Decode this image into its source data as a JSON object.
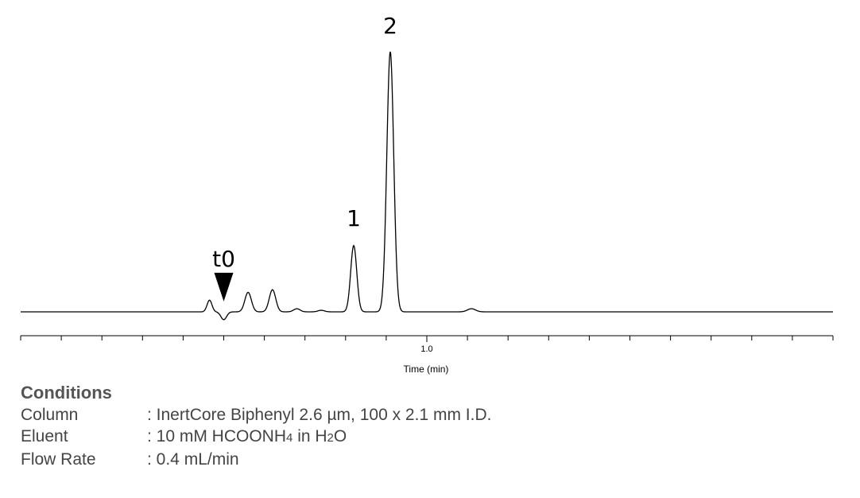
{
  "chart_data": {
    "type": "line",
    "title": "",
    "xlabel": "Time (min)",
    "ylabel": "",
    "x_ticks_labeled": [
      {
        "value": 1.0,
        "label": "1.0"
      }
    ],
    "x_minor_step": 0.1,
    "xlim": [
      0.0,
      2.0
    ],
    "ylim": [
      -0.05,
      1.05
    ],
    "grid": false,
    "baseline": 0.0,
    "series": [
      {
        "color": "#000000",
        "peaks": [
          {
            "t": 0.465,
            "h": 0.045,
            "w": 0.006
          },
          {
            "t": 0.5,
            "h": -0.03,
            "w": 0.007
          },
          {
            "t": 0.56,
            "h": 0.075,
            "w": 0.008
          },
          {
            "t": 0.62,
            "h": 0.085,
            "w": 0.008
          },
          {
            "t": 0.68,
            "h": 0.012,
            "w": 0.008
          },
          {
            "t": 0.74,
            "h": 0.006,
            "w": 0.008
          },
          {
            "t": 0.82,
            "h": 0.255,
            "w": 0.0075
          },
          {
            "t": 0.91,
            "h": 1.0,
            "w": 0.0085
          },
          {
            "t": 1.11,
            "h": 0.012,
            "w": 0.01
          }
        ]
      }
    ],
    "annotations": [
      {
        "label": "t0",
        "x": 0.5,
        "y": 0.04,
        "marker": "triangle-down"
      },
      {
        "label": "1",
        "x": 0.82,
        "y": 0.33
      },
      {
        "label": "2",
        "x": 0.91,
        "y": 1.07
      }
    ]
  },
  "conditions": {
    "title": "Conditions",
    "rows": [
      {
        "label": "Column",
        "value": ": InertCore Biphenyl 2.6 µm, 100 x 2.1 mm I.D."
      },
      {
        "label": "Eluent",
        "value_parts": [
          ": 10 mM HCOONH",
          "4",
          " in H",
          "2",
          "O"
        ]
      },
      {
        "label": "Flow Rate",
        "value": ": 0.4 mL/min"
      }
    ]
  }
}
